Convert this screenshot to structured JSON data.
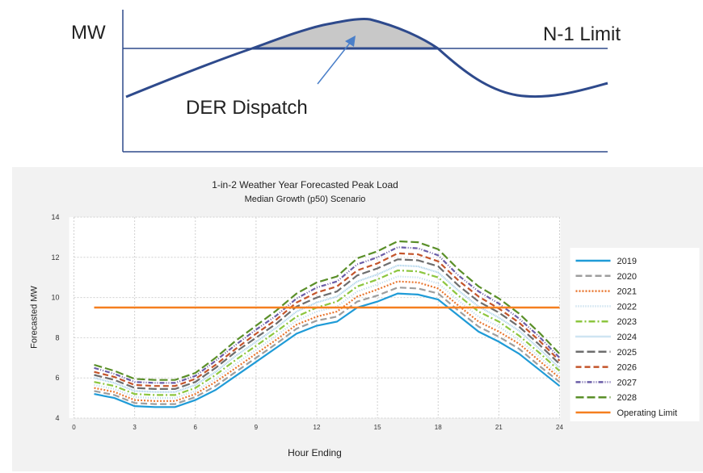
{
  "diagram": {
    "mw_label": "MW",
    "limit_label": "N-1 Limit",
    "dispatch_label": "DER Dispatch"
  },
  "chart_data": {
    "type": "line",
    "title": "1-in-2 Weather Year Forecasted Peak Load",
    "subtitle": "Median Growth (p50) Scenario",
    "xlabel": "Hour Ending",
    "ylabel": "Forecasted MW",
    "xlim": [
      0,
      24
    ],
    "ylim": [
      4,
      14
    ],
    "xticks": [
      0,
      3,
      6,
      9,
      12,
      15,
      18,
      21,
      24
    ],
    "yticks": [
      4,
      6,
      8,
      10,
      12,
      14
    ],
    "grid": true,
    "legend_position": "right",
    "x": [
      1,
      2,
      3,
      4,
      5,
      6,
      7,
      8,
      9,
      10,
      11,
      12,
      13,
      14,
      15,
      16,
      17,
      18,
      19,
      20,
      21,
      22,
      23,
      24
    ],
    "series": [
      {
        "name": "2019",
        "color": "#1f9bd7",
        "dash": "solid",
        "values": [
          5.2,
          5.0,
          4.6,
          4.55,
          4.55,
          4.9,
          5.4,
          6.1,
          6.8,
          7.5,
          8.2,
          8.6,
          8.8,
          9.5,
          9.8,
          10.2,
          10.15,
          9.9,
          9.1,
          8.3,
          7.8,
          7.2,
          6.4,
          5.6
        ]
      },
      {
        "name": "2020",
        "color": "#9e9e9e",
        "dash": "8,4",
        "values": [
          5.35,
          5.15,
          4.75,
          4.7,
          4.7,
          5.05,
          5.6,
          6.3,
          7.0,
          7.7,
          8.45,
          8.85,
          9.05,
          9.8,
          10.1,
          10.5,
          10.45,
          10.2,
          9.35,
          8.55,
          8.05,
          7.45,
          6.6,
          5.8
        ]
      },
      {
        "name": "2021",
        "color": "#e97832",
        "dash": "2,2",
        "values": [
          5.5,
          5.3,
          4.9,
          4.85,
          4.85,
          5.2,
          5.8,
          6.5,
          7.2,
          7.9,
          8.65,
          9.05,
          9.3,
          10.05,
          10.4,
          10.8,
          10.75,
          10.45,
          9.6,
          8.8,
          8.3,
          7.7,
          6.85,
          6.0
        ]
      },
      {
        "name": "2022",
        "color": "#b9d7ea",
        "dash": "1,2",
        "values": [
          5.65,
          5.45,
          5.05,
          5.0,
          5.0,
          5.35,
          5.95,
          6.7,
          7.4,
          8.1,
          8.85,
          9.3,
          9.55,
          10.3,
          10.65,
          11.05,
          11.0,
          10.7,
          9.85,
          9.05,
          8.55,
          7.9,
          7.05,
          6.15
        ]
      },
      {
        "name": "2023",
        "color": "#8cc63f",
        "dash": "8,3,2,3",
        "values": [
          5.8,
          5.6,
          5.2,
          5.15,
          5.15,
          5.5,
          6.15,
          6.9,
          7.6,
          8.3,
          9.05,
          9.5,
          9.8,
          10.55,
          10.9,
          11.35,
          11.3,
          11.0,
          10.1,
          9.3,
          8.8,
          8.1,
          7.25,
          6.35
        ]
      },
      {
        "name": "2024",
        "color": "#9fcbe6",
        "dash": "1,1",
        "values": [
          6.0,
          5.75,
          5.35,
          5.3,
          5.3,
          5.65,
          6.3,
          7.1,
          7.8,
          8.5,
          9.3,
          9.75,
          10.05,
          10.8,
          11.15,
          11.6,
          11.55,
          11.25,
          10.35,
          9.55,
          9.0,
          8.35,
          7.45,
          6.5
        ]
      },
      {
        "name": "2025",
        "color": "#6d6d6d",
        "dash": "10,4",
        "values": [
          6.15,
          5.9,
          5.5,
          5.45,
          5.45,
          5.8,
          6.5,
          7.3,
          8.0,
          8.7,
          9.55,
          10.0,
          10.3,
          11.1,
          11.45,
          11.9,
          11.85,
          11.55,
          10.6,
          9.8,
          9.25,
          8.55,
          7.65,
          6.7
        ]
      },
      {
        "name": "2026",
        "color": "#c4552b",
        "dash": "7,4",
        "values": [
          6.3,
          6.05,
          5.65,
          5.6,
          5.6,
          5.95,
          6.65,
          7.45,
          8.2,
          8.9,
          9.75,
          10.25,
          10.55,
          11.35,
          11.7,
          12.2,
          12.15,
          11.8,
          10.85,
          10.05,
          9.45,
          8.75,
          7.85,
          6.85
        ]
      },
      {
        "name": "2027",
        "color": "#6b5ea8",
        "dash": "6,2,1,2,1,2",
        "values": [
          6.5,
          6.2,
          5.8,
          5.75,
          5.75,
          6.1,
          6.85,
          7.65,
          8.4,
          9.1,
          9.95,
          10.5,
          10.8,
          11.65,
          12.0,
          12.5,
          12.45,
          12.1,
          11.1,
          10.3,
          9.7,
          8.95,
          8.05,
          7.0
        ]
      },
      {
        "name": "2028",
        "color": "#5a8f29",
        "dash": "10,4",
        "values": [
          6.65,
          6.35,
          5.95,
          5.9,
          5.9,
          6.25,
          7.0,
          7.85,
          8.6,
          9.35,
          10.2,
          10.75,
          11.05,
          11.95,
          12.3,
          12.8,
          12.75,
          12.4,
          11.4,
          10.55,
          9.95,
          9.2,
          8.25,
          7.2
        ]
      },
      {
        "name": "Operating Limit",
        "color": "#f57f1f",
        "dash": "solid",
        "values": [
          9.5,
          9.5,
          9.5,
          9.5,
          9.5,
          9.5,
          9.5,
          9.5,
          9.5,
          9.5,
          9.5,
          9.5,
          9.5,
          9.5,
          9.5,
          9.5,
          9.5,
          9.5,
          9.5,
          9.5,
          9.5,
          9.5,
          9.5,
          9.5
        ]
      }
    ]
  }
}
